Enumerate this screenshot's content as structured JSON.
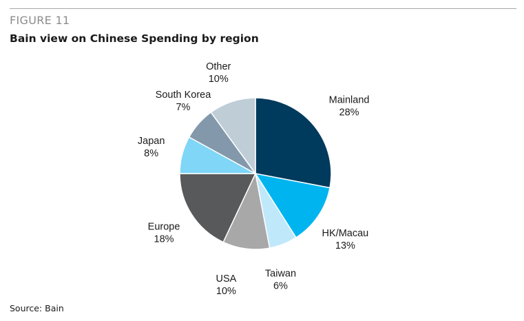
{
  "figure_label": "FIGURE 11",
  "title": "Bain view on Chinese Spending by region",
  "source": "Source: Bain",
  "chart_data": {
    "type": "pie",
    "slices": [
      {
        "label": "Mainland",
        "value": 28,
        "value_label": "28%",
        "color": "#003a5d"
      },
      {
        "label": "HK/Macau",
        "value": 13,
        "value_label": "13%",
        "color": "#00b5ef"
      },
      {
        "label": "Taiwan",
        "value": 6,
        "value_label": "6%",
        "color": "#bfe9fb"
      },
      {
        "label": "USA",
        "value": 10,
        "value_label": "10%",
        "color": "#a8a8a8"
      },
      {
        "label": "Europe",
        "value": 18,
        "value_label": "18%",
        "color": "#58595b"
      },
      {
        "label": "Japan",
        "value": 8,
        "value_label": "8%",
        "color": "#7fd6f7"
      },
      {
        "label": "South Korea",
        "value": 7,
        "value_label": "7%",
        "color": "#8399ab"
      },
      {
        "label": "Other",
        "value": 10,
        "value_label": "10%",
        "color": "#bfcdd6"
      }
    ]
  }
}
